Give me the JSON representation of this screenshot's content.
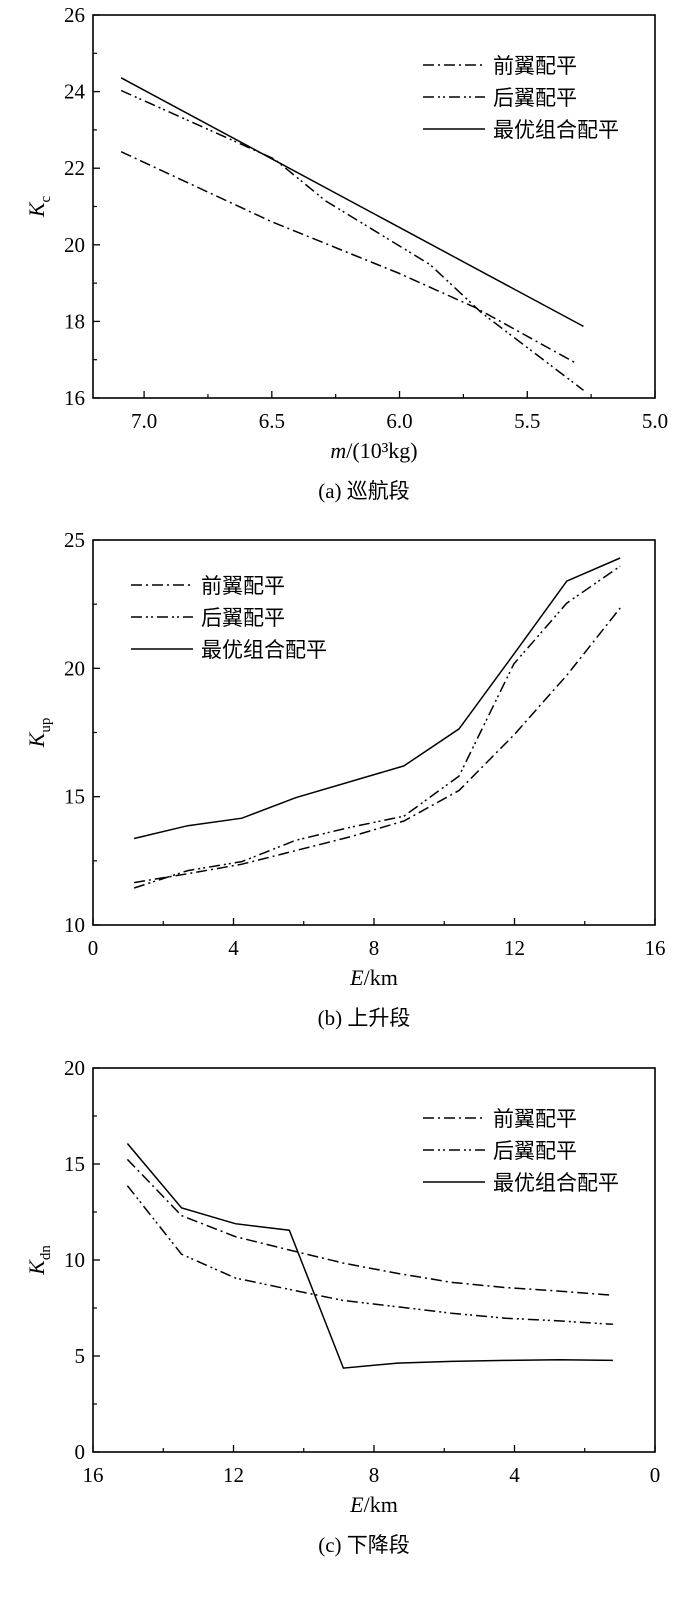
{
  "legend_labels": [
    "前翼配平",
    "后翼配平",
    "最优组合配平"
  ],
  "chart_data": [
    {
      "type": "line",
      "caption": "(a) 巡航段",
      "xlabel_var": "m",
      "xlabel_unit": "/(10³kg)",
      "ylabel_main": "K",
      "ylabel_sub": "c",
      "xlim": [
        7.2,
        5.0
      ],
      "ylim": [
        16,
        26
      ],
      "xticks": [
        7.0,
        6.5,
        6.0,
        5.5,
        5.0
      ],
      "xtick_labels": [
        "7.0",
        "6.5",
        "6.0",
        "5.5",
        "5.0"
      ],
      "xminor": [
        6.75,
        6.25,
        5.75,
        5.25
      ],
      "yticks": [
        16,
        18,
        20,
        22,
        24,
        26
      ],
      "ytick_labels": [
        "16",
        "18",
        "20",
        "22",
        "24",
        "26"
      ],
      "yminor": [
        17,
        19,
        21,
        23,
        25
      ],
      "legend_position": "top-right",
      "grid": false,
      "series": [
        {
          "name": "前翼配平",
          "style": "dash-dot",
          "x": [
            7.09,
            6.5,
            6.0,
            5.7,
            5.31
          ],
          "y": [
            22.43,
            20.6,
            19.25,
            18.35,
            16.91
          ]
        },
        {
          "name": "后翼配平",
          "style": "dash-dot-dot",
          "x": [
            7.09,
            6.49,
            6.29,
            5.88,
            5.68,
            5.28
          ],
          "y": [
            24.03,
            22.24,
            21.15,
            19.48,
            18.23,
            16.2
          ]
        },
        {
          "name": "最优组合配平",
          "style": "solid",
          "x": [
            7.09,
            5.28
          ],
          "y": [
            24.36,
            17.87
          ]
        }
      ]
    },
    {
      "type": "line",
      "caption": "(b) 上升段",
      "xlabel_var": "E",
      "xlabel_unit": "/km",
      "ylabel_main": "K",
      "ylabel_sub": "up",
      "xlim": [
        0,
        16
      ],
      "ylim": [
        10,
        25
      ],
      "xticks": [
        0,
        4,
        8,
        12,
        16
      ],
      "xtick_labels": [
        "0",
        "4",
        "8",
        "12",
        "16"
      ],
      "xminor": [
        2,
        6,
        10,
        14
      ],
      "yticks": [
        10,
        15,
        20,
        25
      ],
      "ytick_labels": [
        "10",
        "15",
        "20",
        "25"
      ],
      "yminor": [
        12.5,
        17.5,
        22.5
      ],
      "legend_position": "top-left",
      "grid": false,
      "series": [
        {
          "name": "前翼配平",
          "style": "dash-dot",
          "x": [
            1.17,
            2.7,
            4.24,
            5.77,
            7.3,
            8.85,
            10.42,
            11.98,
            13.49,
            15.01
          ],
          "y": [
            11.65,
            12.0,
            12.37,
            12.9,
            13.43,
            14.05,
            15.24,
            17.4,
            19.73,
            22.35
          ]
        },
        {
          "name": "后翼配平",
          "style": "dash-dot-dot",
          "x": [
            1.17,
            2.7,
            4.24,
            5.77,
            7.3,
            8.85,
            10.42,
            11.98,
            13.49,
            15.01
          ],
          "y": [
            11.44,
            12.12,
            12.47,
            13.3,
            13.8,
            14.24,
            15.8,
            20.17,
            22.54,
            23.98
          ]
        },
        {
          "name": "最优组合配平",
          "style": "solid",
          "x": [
            1.17,
            2.7,
            4.24,
            5.77,
            8.85,
            10.42,
            11.98,
            13.49,
            15.01
          ],
          "y": [
            13.37,
            13.87,
            14.16,
            14.96,
            16.2,
            17.64,
            20.55,
            23.4,
            24.3
          ]
        }
      ]
    },
    {
      "type": "line",
      "caption": "(c) 下降段",
      "xlabel_var": "E",
      "xlabel_unit": "/km",
      "ylabel_main": "K",
      "ylabel_sub": "dn",
      "xlim": [
        16,
        0
      ],
      "ylim": [
        0,
        20
      ],
      "xticks": [
        16,
        12,
        8,
        4,
        0
      ],
      "xtick_labels": [
        "16",
        "12",
        "8",
        "4",
        "0"
      ],
      "xminor": [
        14,
        10,
        6,
        2
      ],
      "yticks": [
        0,
        5,
        10,
        15,
        20
      ],
      "ytick_labels": [
        "0",
        "5",
        "10",
        "15",
        "20"
      ],
      "yminor": [
        2.5,
        7.5,
        12.5,
        17.5
      ],
      "legend_position": "top-right",
      "grid": false,
      "series": [
        {
          "name": "前翼配平",
          "style": "dash-dot",
          "x": [
            15.02,
            13.48,
            11.95,
            10.41,
            8.87,
            7.33,
            5.8,
            4.26,
            2.73,
            1.2
          ],
          "y": [
            15.24,
            12.31,
            11.22,
            10.52,
            9.84,
            9.3,
            8.84,
            8.56,
            8.38,
            8.16
          ]
        },
        {
          "name": "后翼配平",
          "style": "dash-dot-dot",
          "x": [
            15.02,
            13.48,
            11.95,
            10.41,
            8.87,
            7.33,
            5.8,
            4.26,
            2.73,
            1.2
          ],
          "y": [
            13.87,
            10.3,
            9.06,
            8.47,
            7.89,
            7.56,
            7.23,
            6.97,
            6.83,
            6.65
          ]
        },
        {
          "name": "最优组合配平",
          "style": "solid",
          "x": [
            15.02,
            13.48,
            11.95,
            10.41,
            8.87,
            7.33,
            5.8,
            4.26,
            2.73,
            1.2
          ],
          "y": [
            16.07,
            12.72,
            11.89,
            11.55,
            4.37,
            4.63,
            4.72,
            4.77,
            4.8,
            4.77
          ]
        }
      ]
    }
  ]
}
